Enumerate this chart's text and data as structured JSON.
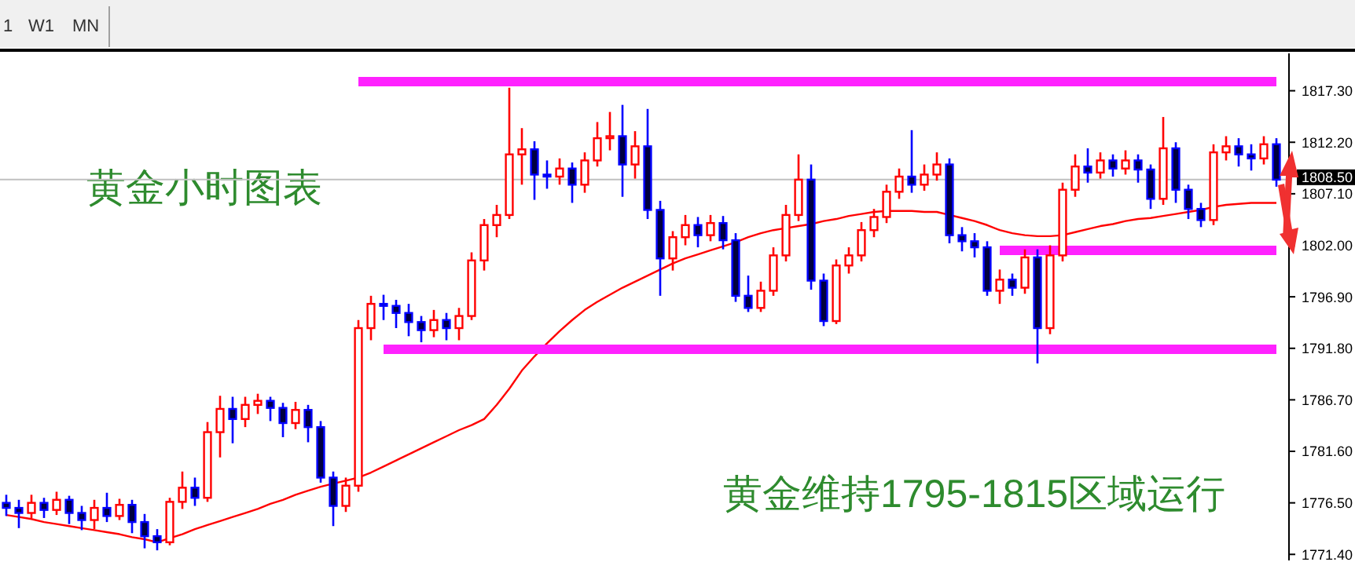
{
  "chart_data": {
    "type": "candlestick",
    "annotations": [
      "1",
      "W1",
      "MN",
      "黄金小时图表",
      "黄金维持1795-1815区域运行"
    ],
    "categories": [
      null,
      null,
      null,
      null,
      null,
      null,
      null,
      null,
      null,
      null,
      null,
      null,
      null,
      null,
      null,
      null,
      null,
      null,
      null,
      null,
      null,
      null,
      null,
      null,
      null,
      null,
      null,
      null,
      null,
      null,
      null,
      null,
      null,
      null,
      null,
      null,
      null,
      null,
      null,
      null,
      null,
      null,
      null,
      null,
      null,
      null,
      null,
      null,
      null,
      null,
      null,
      null,
      null,
      null,
      null,
      null,
      null,
      null,
      null,
      null,
      null,
      null,
      null,
      null,
      null,
      null,
      null,
      null,
      null,
      null,
      null,
      null,
      null,
      null,
      null,
      null,
      null,
      null,
      null,
      null,
      null,
      null,
      null,
      null,
      null,
      null,
      null,
      null,
      null,
      null,
      null,
      null,
      null,
      null,
      null,
      null,
      null,
      null,
      null,
      null,
      null,
      null
    ],
    "ohlc": [
      [
        1776.5,
        1777.3,
        1775.2,
        1776.0
      ],
      [
        1776.0,
        1776.8,
        1774.0,
        1775.5
      ],
      [
        1775.5,
        1777.3,
        1775.0,
        1776.5
      ],
      [
        1776.5,
        1777.0,
        1775.0,
        1775.8
      ],
      [
        1775.8,
        1777.6,
        1775.3,
        1776.8
      ],
      [
        1776.8,
        1777.2,
        1774.4,
        1775.5
      ],
      [
        1775.5,
        1776.2,
        1773.8,
        1774.8
      ],
      [
        1774.8,
        1776.8,
        1773.9,
        1776.0
      ],
      [
        1776.0,
        1777.5,
        1774.6,
        1775.2
      ],
      [
        1775.2,
        1776.9,
        1774.8,
        1776.3
      ],
      [
        1776.3,
        1776.8,
        1773.5,
        1774.6
      ],
      [
        1774.6,
        1775.4,
        1772.0,
        1773.2
      ],
      [
        1773.2,
        1773.9,
        1771.8,
        1772.6
      ],
      [
        1772.6,
        1777.0,
        1772.3,
        1776.6
      ],
      [
        1776.6,
        1779.6,
        1775.9,
        1778.0
      ],
      [
        1778.0,
        1779.0,
        1776.2,
        1777.0
      ],
      [
        1777.0,
        1784.5,
        1776.6,
        1783.5
      ],
      [
        1783.5,
        1787.1,
        1781.0,
        1785.8
      ],
      [
        1785.8,
        1787.0,
        1782.4,
        1784.8
      ],
      [
        1784.8,
        1787.0,
        1784.0,
        1786.2
      ],
      [
        1786.2,
        1787.3,
        1785.3,
        1786.6
      ],
      [
        1786.6,
        1787.0,
        1784.6,
        1785.9
      ],
      [
        1785.9,
        1786.4,
        1783.0,
        1784.4
      ],
      [
        1784.4,
        1786.5,
        1783.8,
        1785.7
      ],
      [
        1785.7,
        1786.2,
        1782.5,
        1784.0
      ],
      [
        1784.0,
        1784.6,
        1778.5,
        1779.0
      ],
      [
        1779.0,
        1779.6,
        1774.2,
        1776.2
      ],
      [
        1776.2,
        1779.0,
        1775.6,
        1778.2
      ],
      [
        1778.2,
        1794.6,
        1777.6,
        1793.8
      ],
      [
        1793.8,
        1797.0,
        1792.6,
        1796.2
      ],
      [
        1796.2,
        1797.1,
        1794.6,
        1796.0
      ],
      [
        1796.0,
        1796.6,
        1793.8,
        1795.3
      ],
      [
        1795.3,
        1796.2,
        1793.0,
        1794.4
      ],
      [
        1794.4,
        1795.0,
        1792.4,
        1793.6
      ],
      [
        1793.6,
        1795.6,
        1792.9,
        1794.6
      ],
      [
        1794.6,
        1795.3,
        1792.6,
        1793.8
      ],
      [
        1793.8,
        1795.8,
        1792.6,
        1795.0
      ],
      [
        1795.0,
        1801.3,
        1794.6,
        1800.5
      ],
      [
        1800.5,
        1804.6,
        1799.5,
        1804.0
      ],
      [
        1804.0,
        1806.0,
        1802.8,
        1805.0
      ],
      [
        1805.0,
        1817.6,
        1804.6,
        1811.0
      ],
      [
        1811.0,
        1813.6,
        1808.0,
        1811.5
      ],
      [
        1811.5,
        1812.3,
        1806.5,
        1809.0
      ],
      [
        1809.0,
        1810.4,
        1807.6,
        1808.8
      ],
      [
        1808.8,
        1810.6,
        1808.0,
        1809.6
      ],
      [
        1809.6,
        1810.2,
        1806.2,
        1808.0
      ],
      [
        1808.0,
        1811.2,
        1807.2,
        1810.4
      ],
      [
        1810.4,
        1814.2,
        1809.8,
        1812.6
      ],
      [
        1812.6,
        1815.2,
        1811.4,
        1812.8
      ],
      [
        1812.8,
        1815.9,
        1806.8,
        1810.0
      ],
      [
        1810.0,
        1813.3,
        1808.6,
        1811.8
      ],
      [
        1811.8,
        1815.5,
        1804.6,
        1805.5
      ],
      [
        1805.5,
        1806.4,
        1797.0,
        1800.7
      ],
      [
        1800.7,
        1803.4,
        1799.5,
        1802.8
      ],
      [
        1802.8,
        1805.0,
        1802.0,
        1804.0
      ],
      [
        1804.0,
        1804.8,
        1801.8,
        1803.0
      ],
      [
        1803.0,
        1805.0,
        1802.4,
        1804.2
      ],
      [
        1804.2,
        1804.9,
        1801.6,
        1802.5
      ],
      [
        1802.5,
        1803.2,
        1796.4,
        1797.0
      ],
      [
        1797.0,
        1799.0,
        1795.4,
        1795.8
      ],
      [
        1795.8,
        1798.4,
        1795.4,
        1797.5
      ],
      [
        1797.5,
        1801.8,
        1797.0,
        1801.0
      ],
      [
        1801.0,
        1806.0,
        1800.4,
        1805.0
      ],
      [
        1805.0,
        1811.0,
        1804.4,
        1808.5
      ],
      [
        1808.5,
        1810.0,
        1797.6,
        1798.5
      ],
      [
        1798.5,
        1799.2,
        1794.0,
        1794.5
      ],
      [
        1794.5,
        1800.6,
        1794.2,
        1800.0
      ],
      [
        1800.0,
        1801.8,
        1799.2,
        1801.0
      ],
      [
        1801.0,
        1804.3,
        1800.4,
        1803.5
      ],
      [
        1803.5,
        1805.6,
        1802.8,
        1804.8
      ],
      [
        1804.8,
        1808.0,
        1804.2,
        1807.3
      ],
      [
        1807.3,
        1809.6,
        1806.6,
        1808.8
      ],
      [
        1808.8,
        1813.4,
        1807.2,
        1808.0
      ],
      [
        1808.0,
        1810.0,
        1807.4,
        1809.0
      ],
      [
        1809.0,
        1811.2,
        1808.4,
        1810.0
      ],
      [
        1810.0,
        1810.6,
        1802.2,
        1803.0
      ],
      [
        1803.0,
        1803.8,
        1801.4,
        1802.4
      ],
      [
        1802.4,
        1803.2,
        1800.8,
        1801.8
      ],
      [
        1801.8,
        1802.4,
        1797.0,
        1797.5
      ],
      [
        1797.5,
        1799.6,
        1796.2,
        1798.6
      ],
      [
        1798.6,
        1799.2,
        1797.0,
        1797.8
      ],
      [
        1797.8,
        1801.6,
        1797.2,
        1800.8
      ],
      [
        1800.8,
        1801.6,
        1790.3,
        1793.8
      ],
      [
        1793.8,
        1802.0,
        1793.2,
        1801.0
      ],
      [
        1801.0,
        1808.2,
        1800.4,
        1807.5
      ],
      [
        1807.5,
        1811.0,
        1806.8,
        1809.8
      ],
      [
        1809.8,
        1811.6,
        1808.2,
        1809.2
      ],
      [
        1809.2,
        1811.2,
        1808.6,
        1810.4
      ],
      [
        1810.4,
        1811.0,
        1808.8,
        1809.6
      ],
      [
        1809.6,
        1811.4,
        1809.0,
        1810.4
      ],
      [
        1810.4,
        1811.0,
        1808.2,
        1809.5
      ],
      [
        1809.5,
        1810.0,
        1805.6,
        1806.6
      ],
      [
        1806.6,
        1814.7,
        1806.0,
        1811.6
      ],
      [
        1811.6,
        1812.2,
        1806.2,
        1807.5
      ],
      [
        1807.5,
        1808.0,
        1804.6,
        1805.6
      ],
      [
        1805.6,
        1806.2,
        1803.8,
        1804.5
      ],
      [
        1804.5,
        1812.0,
        1804.0,
        1811.2
      ],
      [
        1811.2,
        1812.8,
        1810.4,
        1811.8
      ],
      [
        1811.8,
        1812.6,
        1809.8,
        1811.0
      ],
      [
        1811.0,
        1812.0,
        1809.4,
        1810.6
      ],
      [
        1810.6,
        1812.8,
        1810.0,
        1812.0
      ],
      [
        1812.0,
        1812.6,
        1807.8,
        1808.5
      ]
    ],
    "series": [
      {
        "type": "line",
        "color": "#ff0000",
        "values": [
          1775.3,
          1775.1,
          1774.9,
          1774.6,
          1774.4,
          1774.2,
          1774.0,
          1773.8,
          1773.6,
          1773.4,
          1773.1,
          1772.9,
          1772.6,
          1773.0,
          1773.4,
          1773.9,
          1774.3,
          1774.7,
          1775.1,
          1775.5,
          1775.9,
          1776.4,
          1776.8,
          1777.3,
          1777.7,
          1778.1,
          1778.4,
          1778.7,
          1779.0,
          1779.5,
          1780.1,
          1780.7,
          1781.3,
          1781.9,
          1782.5,
          1783.1,
          1783.7,
          1784.2,
          1784.8,
          1786.2,
          1787.8,
          1789.6,
          1791.0,
          1792.3,
          1793.5,
          1794.6,
          1795.6,
          1796.4,
          1797.1,
          1797.8,
          1798.4,
          1799.0,
          1799.6,
          1800.2,
          1800.7,
          1801.1,
          1801.5,
          1801.9,
          1802.3,
          1802.8,
          1803.2,
          1803.5,
          1803.7,
          1803.9,
          1804.1,
          1804.4,
          1804.6,
          1804.9,
          1805.1,
          1805.3,
          1805.4,
          1805.4,
          1805.4,
          1805.3,
          1805.3,
          1805.0,
          1804.7,
          1804.4,
          1804.0,
          1803.5,
          1803.2,
          1803.0,
          1802.9,
          1802.9,
          1803.0,
          1803.3,
          1803.6,
          1803.9,
          1804.1,
          1804.4,
          1804.6,
          1804.7,
          1804.9,
          1805.1,
          1805.3,
          1805.5,
          1805.8,
          1806.0,
          1806.1,
          1806.2,
          1806.2,
          1806.2
        ]
      },
      {
        "type": "line",
        "color": "#ff22ff",
        "values": [
          null,
          null,
          null,
          null,
          null,
          null,
          null,
          null,
          null,
          null,
          null,
          null,
          null,
          null,
          null,
          null,
          null,
          null,
          null,
          null,
          null,
          null,
          null,
          null,
          null,
          null,
          null,
          null,
          1818.2,
          1818.2,
          1818.2,
          1818.2,
          1818.2,
          1818.2,
          1818.2,
          1818.2,
          1818.2,
          1818.2,
          1818.2,
          1818.2,
          1818.2,
          1818.2,
          1818.2,
          1818.2,
          1818.2,
          1818.2,
          1818.2,
          1818.2,
          1818.2,
          1818.2,
          1818.2,
          1818.2,
          1818.2,
          1818.2,
          1818.2,
          1818.2,
          1818.2,
          1818.2,
          1818.2,
          1818.2,
          1818.2,
          1818.2,
          1818.2,
          1818.2,
          1818.2,
          1818.2,
          1818.2,
          1818.2,
          1818.2,
          1818.2,
          1818.2,
          1818.2,
          1818.2,
          1818.2,
          1818.2,
          1818.2,
          1818.2,
          1818.2,
          1818.2,
          1818.2,
          1818.2,
          1818.2,
          1818.2,
          1818.2,
          1818.2,
          1818.2,
          1818.2,
          1818.2,
          1818.2,
          1818.2,
          1818.2,
          1818.2,
          1818.2,
          1818.2,
          1818.2,
          1818.2,
          1818.2,
          1818.2,
          1818.2,
          1818.2,
          1818.2,
          1818.2
        ]
      },
      {
        "type": "line",
        "color": "#ff22ff",
        "values": [
          null,
          null,
          null,
          null,
          null,
          null,
          null,
          null,
          null,
          null,
          null,
          null,
          null,
          null,
          null,
          null,
          null,
          null,
          null,
          null,
          null,
          null,
          null,
          null,
          null,
          null,
          null,
          null,
          null,
          null,
          1791.7,
          1791.7,
          1791.7,
          1791.7,
          1791.7,
          1791.7,
          1791.7,
          1791.7,
          1791.7,
          1791.7,
          1791.7,
          1791.7,
          1791.7,
          1791.7,
          1791.7,
          1791.7,
          1791.7,
          1791.7,
          1791.7,
          1791.7,
          1791.7,
          1791.7,
          1791.7,
          1791.7,
          1791.7,
          1791.7,
          1791.7,
          1791.7,
          1791.7,
          1791.7,
          1791.7,
          1791.7,
          1791.7,
          1791.7,
          1791.7,
          1791.7,
          1791.7,
          1791.7,
          1791.7,
          1791.7,
          1791.7,
          1791.7,
          1791.7,
          1791.7,
          1791.7,
          1791.7,
          1791.7,
          1791.7,
          1791.7,
          1791.7,
          1791.7,
          1791.7,
          1791.7,
          1791.7,
          1791.7,
          1791.7,
          1791.7,
          1791.7,
          1791.7,
          1791.7,
          1791.7,
          1791.7,
          1791.7,
          1791.7,
          1791.7,
          1791.7,
          1791.7,
          1791.7,
          1791.7,
          1791.7,
          1791.7,
          1791.7
        ]
      },
      {
        "type": "line",
        "color": "#ff22ff",
        "values": [
          null,
          null,
          null,
          null,
          null,
          null,
          null,
          null,
          null,
          null,
          null,
          null,
          null,
          null,
          null,
          null,
          null,
          null,
          null,
          null,
          null,
          null,
          null,
          null,
          null,
          null,
          null,
          null,
          null,
          null,
          null,
          null,
          null,
          null,
          null,
          null,
          null,
          null,
          null,
          null,
          null,
          null,
          null,
          null,
          null,
          null,
          null,
          null,
          null,
          null,
          null,
          null,
          null,
          null,
          null,
          null,
          null,
          null,
          null,
          null,
          null,
          null,
          null,
          null,
          null,
          null,
          null,
          null,
          null,
          null,
          null,
          null,
          null,
          null,
          null,
          null,
          null,
          null,
          null,
          1801.5,
          1801.5,
          1801.5,
          1801.5,
          1801.5,
          1801.5,
          1801.5,
          1801.5,
          1801.5,
          1801.5,
          1801.5,
          1801.5,
          1801.5,
          1801.5,
          1801.5,
          1801.5,
          1801.5,
          1801.5,
          1801.5,
          1801.5,
          1801.5,
          1801.5,
          1801.5
        ]
      }
    ],
    "ref_lines": [
      {
        "axis": "y",
        "value": 1808.5,
        "label": "1808.50",
        "color": "#c0c0c0"
      }
    ],
    "ylim": [
      1770.8,
      1821.0
    ],
    "yticks": [
      {
        "value": 1817.3,
        "label": "1817.30"
      },
      {
        "value": 1812.2,
        "label": "1812.20"
      },
      {
        "value": 1807.1,
        "label": "1807.10"
      },
      {
        "value": 1802.0,
        "label": "1802.00"
      },
      {
        "value": 1796.9,
        "label": "1796.90"
      },
      {
        "value": 1791.8,
        "label": "1791.80"
      },
      {
        "value": 1786.7,
        "label": "1786.70"
      },
      {
        "value": 1781.6,
        "label": "1781.60"
      },
      {
        "value": 1776.5,
        "label": "1776.50"
      },
      {
        "value": 1771.4,
        "label": "1771.40"
      }
    ],
    "tick_labels": "y",
    "grid": false
  }
}
